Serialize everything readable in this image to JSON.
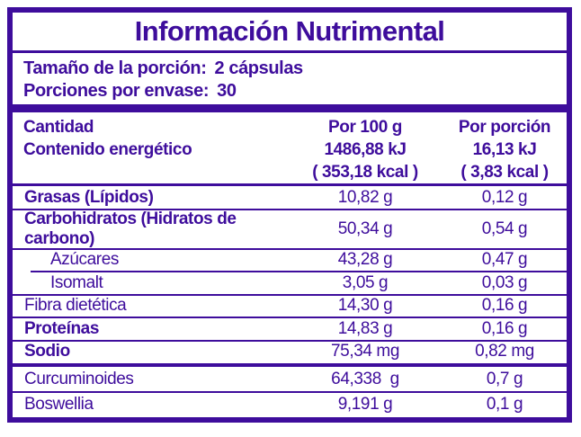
{
  "ink_color": "#3E0D9C",
  "title": "Información Nutrimental",
  "serving": {
    "size_label": "Tamaño de la porción:",
    "size_value": "2 cápsulas",
    "per_container_label": "Porciones por envase:",
    "per_container_value": "30"
  },
  "table": {
    "header": {
      "col_amount": "Cantidad",
      "col_per100": "Por 100 g",
      "col_portion": "Por porción",
      "energy_label": "Contenido energético",
      "energy_per100_kj": "1486,88 kJ",
      "energy_portion_kj": "16,13 kJ",
      "energy_per100_kcal": "( 353,18 kcal )",
      "energy_portion_kcal": "( 3,83 kcal )"
    },
    "rows": [
      {
        "label": "Grasas (Lípidos)",
        "per100": "10,82 g",
        "portion": "0,12 g",
        "bold": true
      },
      {
        "label": "Carbohidratos (Hidratos de carbono)",
        "per100": "50,34 g",
        "portion": "0,54 g",
        "bold": true
      },
      {
        "label": "Azúcares",
        "per100": "43,28 g",
        "portion": "0,47 g",
        "sub": true
      },
      {
        "label": "Isomalt",
        "per100": "3,05 g",
        "portion": "0,03 g",
        "sub": true
      },
      {
        "label": "Fibra dietética",
        "per100": "14,30 g",
        "portion": "0,16 g"
      },
      {
        "label": "Proteínas",
        "per100": "14,83 g",
        "portion": "0,16 g",
        "bold": true
      },
      {
        "label": "Sodio",
        "per100": "75,34 mg",
        "portion": "0,82 mg",
        "bold": true
      }
    ],
    "extra_rows": [
      {
        "label": "Curcuminoides",
        "per100": "64,338  g",
        "portion": "0,7 g"
      },
      {
        "label": "Boswellia",
        "per100": "9,191 g",
        "portion": "0,1 g"
      }
    ]
  }
}
